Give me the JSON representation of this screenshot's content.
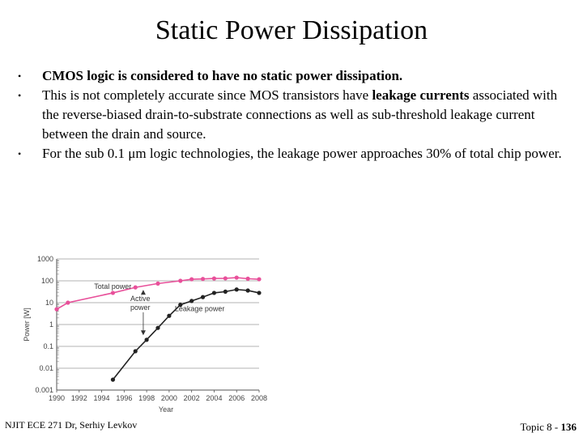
{
  "slide": {
    "title": "Static Power Dissipation",
    "bullets": [
      {
        "text": "CMOS logic is considered to have no static power dissipation."
      },
      {
        "before": "This is not completely accurate since MOS transistors have ",
        "bold": "leakage currents",
        "after": " associated with the reverse-biased drain-to-substrate connections as well as sub-threshold leakage current between the drain and source."
      },
      {
        "before": "For the sub 0.1 ",
        "unit": "μm",
        "after": " logic technologies, the leakage power approaches 30% of total chip power."
      }
    ],
    "bullet_glyph": "•"
  },
  "footer": {
    "left": "NJIT ECE 271  Dr, Serhiy Levkov",
    "right_prefix": "Topic 8 - ",
    "page_number": "136"
  },
  "chart_data": {
    "type": "line",
    "xlabel": "Year",
    "ylabel": "Power [W]",
    "x_ticks": [
      "1990",
      "1992",
      "1994",
      "1996",
      "1998",
      "2000",
      "2002",
      "2004",
      "2006",
      "2008"
    ],
    "y_ticks": [
      "0.001",
      "0.01",
      "0.1",
      "1",
      "10",
      "100",
      "1000"
    ],
    "ylim": [
      0.001,
      1000
    ],
    "xlim": [
      1990,
      2008
    ],
    "y_scale": "log",
    "grid": "horizontal",
    "annotations": [
      "Total power",
      "Active power",
      "Leakage power"
    ],
    "series": [
      {
        "name": "Total power",
        "color": "#e8509a",
        "x": [
          1990,
          1991,
          1995,
          1997,
          1999,
          2001,
          2002,
          2003,
          2004,
          2005,
          2006,
          2007,
          2008
        ],
        "y": [
          5,
          10,
          28,
          50,
          75,
          100,
          118,
          122,
          128,
          130,
          140,
          125,
          118
        ]
      },
      {
        "name": "Leakage power",
        "color": "#222222",
        "x": [
          1995,
          1997,
          1998,
          1999,
          2000,
          2001,
          2002,
          2003,
          2004,
          2005,
          2006,
          2007,
          2008
        ],
        "y": [
          0.003,
          0.06,
          0.2,
          0.7,
          2.5,
          8,
          12,
          18,
          28,
          32,
          40,
          36,
          28
        ]
      }
    ]
  }
}
